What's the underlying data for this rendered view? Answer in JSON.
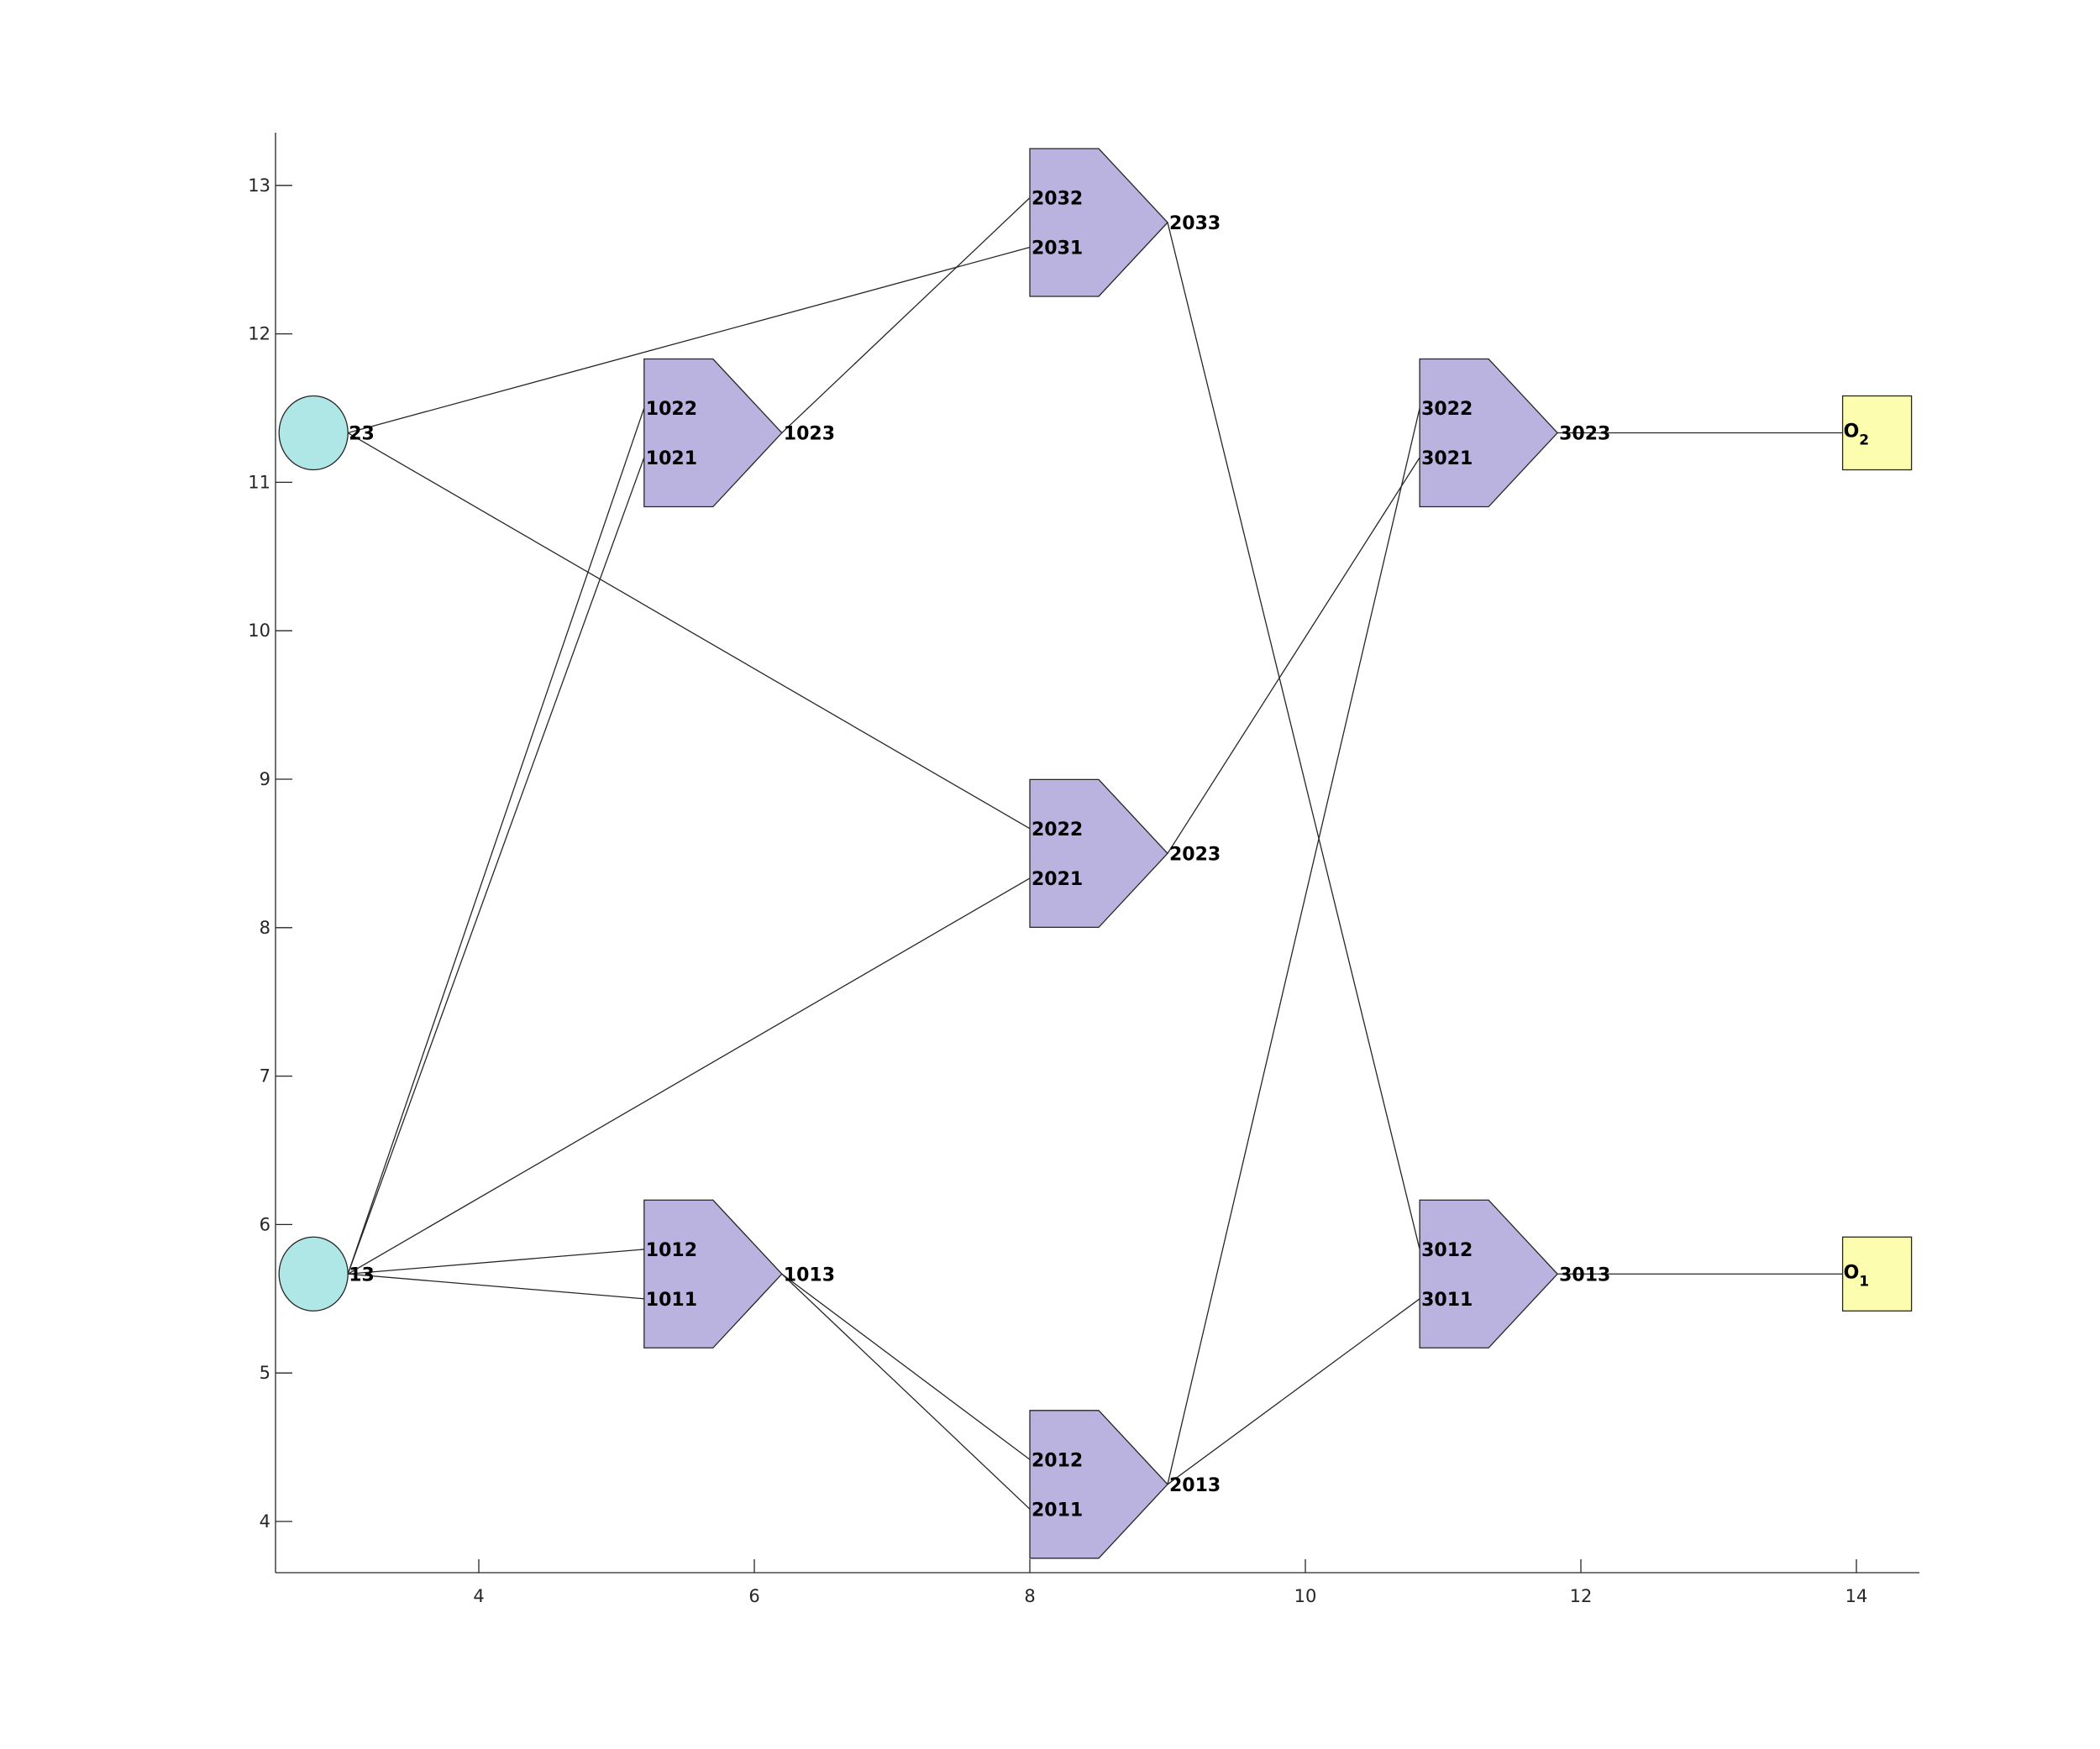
{
  "chart_data": {
    "type": "diagram",
    "x_ticks": [
      4,
      6,
      8,
      10,
      12,
      14
    ],
    "y_ticks": [
      4,
      5,
      6,
      7,
      8,
      9,
      10,
      11,
      12,
      13
    ],
    "colors": {
      "source": "#afe7e7",
      "unit": "#bab2df",
      "output": "#fdfdb0",
      "line": "#262626"
    },
    "sources": [
      {
        "id": "s13",
        "label": "13",
        "x": 2.8,
        "y": 5.667
      },
      {
        "id": "s23",
        "label": "23",
        "x": 2.8,
        "y": 11.333
      }
    ],
    "units": [
      {
        "id": "u101",
        "x": 5.2,
        "y": 5.667,
        "inputs": [
          {
            "label": "1012",
            "y": 5.833
          },
          {
            "label": "1011",
            "y": 5.5
          }
        ],
        "output": "1013"
      },
      {
        "id": "u102",
        "x": 5.2,
        "y": 11.333,
        "inputs": [
          {
            "label": "1022",
            "y": 11.5
          },
          {
            "label": "1021",
            "y": 11.167
          }
        ],
        "output": "1023"
      },
      {
        "id": "u201",
        "x": 8.0,
        "y": 4.25,
        "inputs": [
          {
            "label": "2012",
            "y": 4.417
          },
          {
            "label": "2011",
            "y": 4.083
          }
        ],
        "output": "2013"
      },
      {
        "id": "u202",
        "x": 8.0,
        "y": 8.5,
        "inputs": [
          {
            "label": "2022",
            "y": 8.667
          },
          {
            "label": "2021",
            "y": 8.333
          }
        ],
        "output": "2023"
      },
      {
        "id": "u203",
        "x": 8.0,
        "y": 12.75,
        "inputs": [
          {
            "label": "2032",
            "y": 12.917
          },
          {
            "label": "2031",
            "y": 12.583
          }
        ],
        "output": "2033"
      },
      {
        "id": "u301",
        "x": 10.83,
        "y": 5.667,
        "inputs": [
          {
            "label": "3012",
            "y": 5.833
          },
          {
            "label": "3011",
            "y": 5.5
          }
        ],
        "output": "3013"
      },
      {
        "id": "u302",
        "x": 10.83,
        "y": 11.333,
        "inputs": [
          {
            "label": "3022",
            "y": 11.5
          },
          {
            "label": "3021",
            "y": 11.167
          }
        ],
        "output": "3023"
      }
    ],
    "outputs": [
      {
        "id": "o1",
        "label": "O",
        "sub": "1",
        "x": 13.9,
        "y": 5.667
      },
      {
        "id": "o2",
        "label": "O",
        "sub": "2",
        "x": 13.9,
        "y": 11.333
      }
    ],
    "edges": [
      [
        "13",
        "1012"
      ],
      [
        "13",
        "1011"
      ],
      [
        "13",
        "1022"
      ],
      [
        "13",
        "1021"
      ],
      [
        "13",
        "2021"
      ],
      [
        "23",
        "2031"
      ],
      [
        "23",
        "2022"
      ],
      [
        "1013",
        "2012"
      ],
      [
        "1013",
        "2011"
      ],
      [
        "1023",
        "2032"
      ],
      [
        "2013",
        "3011"
      ],
      [
        "2013",
        "3022"
      ],
      [
        "2023",
        "3021"
      ],
      [
        "2033",
        "3012"
      ],
      [
        "3013",
        "O1"
      ],
      [
        "3023",
        "O2"
      ]
    ]
  }
}
